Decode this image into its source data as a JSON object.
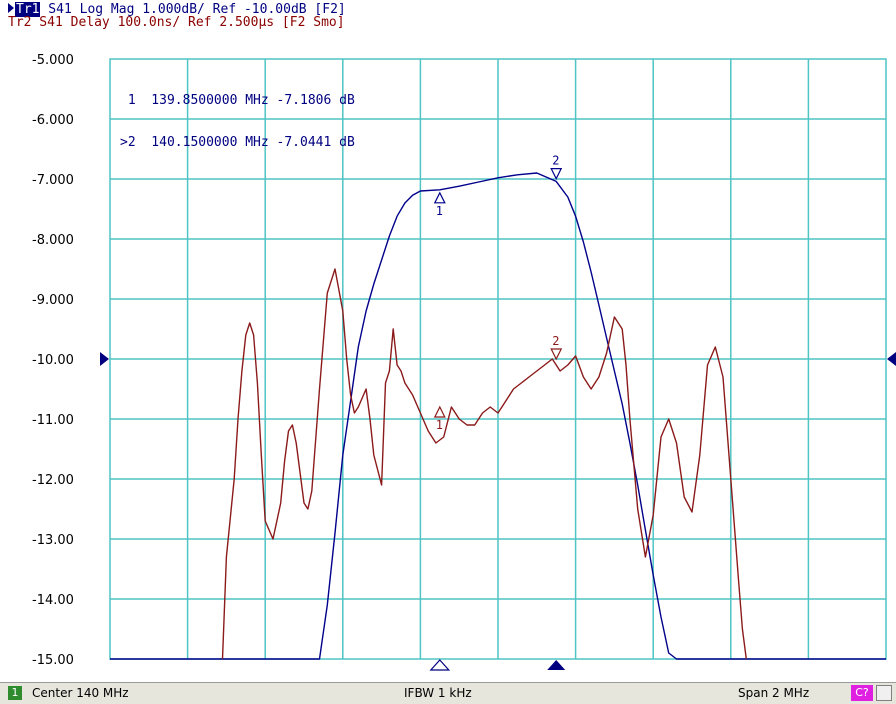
{
  "header": {
    "tr1_badge": "Tr1",
    "tr1_text": " S41 Log Mag 1.000dB/ Ref -10.00dB [F2]",
    "tr2_text": "Tr2 S41 Delay 100.0ns/ Ref 2.500µs [F2 Smo]"
  },
  "markers_readout": {
    "line1": " 1  139.8500000 MHz -7.1806 dB",
    "line2": ">2  140.1500000 MHz -7.0441 dB"
  },
  "status": {
    "channel": "1",
    "center": "Center 140 MHz",
    "ifbw": "IFBW 1 kHz",
    "span": "Span 2 MHz",
    "cal": "C?"
  },
  "colors": {
    "grid": "#4fc4c4",
    "trace_mag": "#00008b",
    "trace_delay": "#8b1a1a",
    "ref_arrow": "#000080"
  },
  "chart_data": {
    "type": "line",
    "ylim": [
      -15,
      -5
    ],
    "xlim": [
      139,
      141
    ],
    "x_unit": "MHz",
    "y_ticks": [
      "-5.000",
      "-6.000",
      "-7.000",
      "-8.000",
      "-9.000",
      "-10.00",
      "-11.00",
      "-12.00",
      "-13.00",
      "-14.00",
      "-15.00"
    ],
    "ref_value": -10,
    "grid": true,
    "markers": [
      {
        "label": "1",
        "x": 139.85,
        "y": -7.1806
      },
      {
        "label": "2",
        "x": 140.15,
        "y": -7.0441
      }
    ],
    "marker_labels_delay": [
      {
        "label": "1",
        "x": 139.85,
        "y": -10.75
      },
      {
        "label": "2",
        "x": 140.15,
        "y": -10.05
      }
    ],
    "series": [
      {
        "trace": "Tr1",
        "x": [
          139.0,
          139.54,
          139.56,
          139.58,
          139.6,
          139.62,
          139.64,
          139.66,
          139.68,
          139.7,
          139.72,
          139.74,
          139.76,
          139.78,
          139.8,
          139.85,
          139.9,
          139.95,
          140.0,
          140.05,
          140.1,
          140.15,
          140.18,
          140.2,
          140.22,
          140.24,
          140.26,
          140.28,
          140.3,
          140.32,
          140.34,
          140.36,
          140.38,
          140.4,
          140.42,
          140.44,
          140.46,
          141.0
        ],
        "values": [
          -15.0,
          -15.0,
          -14.1,
          -12.9,
          -11.6,
          -10.7,
          -9.8,
          -9.2,
          -8.75,
          -8.35,
          -7.95,
          -7.62,
          -7.4,
          -7.27,
          -7.2,
          -7.18,
          -7.12,
          -7.05,
          -6.98,
          -6.93,
          -6.9,
          -7.04,
          -7.3,
          -7.62,
          -8.05,
          -8.55,
          -9.1,
          -9.65,
          -10.2,
          -10.75,
          -11.4,
          -12.1,
          -12.85,
          -13.6,
          -14.3,
          -14.9,
          -15.0,
          -15.0
        ]
      },
      {
        "trace": "Tr2",
        "x": [
          139.29,
          139.3,
          139.32,
          139.33,
          139.34,
          139.35,
          139.36,
          139.37,
          139.38,
          139.39,
          139.4,
          139.42,
          139.44,
          139.45,
          139.46,
          139.47,
          139.48,
          139.49,
          139.5,
          139.51,
          139.52,
          139.54,
          139.56,
          139.58,
          139.6,
          139.61,
          139.62,
          139.63,
          139.64,
          139.66,
          139.67,
          139.68,
          139.7,
          139.71,
          139.72,
          139.73,
          139.74,
          139.75,
          139.76,
          139.78,
          139.8,
          139.82,
          139.84,
          139.86,
          139.88,
          139.9,
          139.92,
          139.94,
          139.96,
          139.98,
          140.0,
          140.02,
          140.04,
          140.06,
          140.08,
          140.1,
          140.12,
          140.14,
          140.16,
          140.18,
          140.2,
          140.22,
          140.24,
          140.26,
          140.28,
          140.3,
          140.32,
          140.33,
          140.34,
          140.36,
          140.38,
          140.4,
          140.42,
          140.44,
          140.46,
          140.48,
          140.5,
          140.52,
          140.54,
          140.56,
          140.58,
          140.6,
          140.62,
          140.63,
          140.64
        ],
        "values": [
          -15.0,
          -13.3,
          -12.0,
          -11.0,
          -10.2,
          -9.6,
          -9.4,
          -9.6,
          -10.4,
          -11.6,
          -12.7,
          -13.0,
          -12.4,
          -11.7,
          -11.2,
          -11.1,
          -11.4,
          -11.9,
          -12.4,
          -12.5,
          -12.2,
          -10.5,
          -8.9,
          -8.5,
          -9.2,
          -10.0,
          -10.6,
          -10.9,
          -10.8,
          -10.5,
          -11.0,
          -11.6,
          -12.1,
          -10.4,
          -10.2,
          -9.5,
          -10.1,
          -10.2,
          -10.4,
          -10.6,
          -10.9,
          -11.2,
          -11.4,
          -11.3,
          -10.8,
          -11.0,
          -11.1,
          -11.1,
          -10.9,
          -10.8,
          -10.9,
          -10.7,
          -10.5,
          -10.4,
          -10.3,
          -10.2,
          -10.1,
          -10.0,
          -10.2,
          -10.1,
          -9.95,
          -10.3,
          -10.5,
          -10.3,
          -9.9,
          -9.3,
          -9.5,
          -10.1,
          -11.0,
          -12.5,
          -13.3,
          -12.6,
          -11.3,
          -11.0,
          -11.4,
          -12.3,
          -12.55,
          -11.6,
          -10.1,
          -9.8,
          -10.3,
          -12.0,
          -13.7,
          -14.5,
          -15.0
        ]
      }
    ]
  }
}
